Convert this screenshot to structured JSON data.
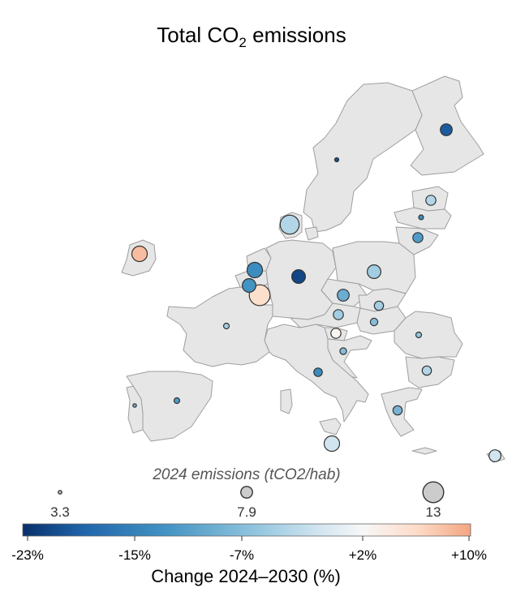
{
  "title": {
    "main": "Total CO",
    "sub": "2",
    "rest": " emissions"
  },
  "size_legend": {
    "title": "2024 emissions (tCO2/hab)",
    "items": [
      {
        "label": "3.3",
        "value": 3.3
      },
      {
        "label": "7.9",
        "value": 7.9
      },
      {
        "label": "13",
        "value": 13
      }
    ]
  },
  "colorbar": {
    "title": "Change 2024–2030 (%)",
    "min": -23,
    "max": 10,
    "ticks": [
      {
        "label": "-23%",
        "value": -23
      },
      {
        "label": "-15%",
        "value": -15
      },
      {
        "label": "-7%",
        "value": -7
      },
      {
        "label": "+2%",
        "value": 2
      },
      {
        "label": "+10%",
        "value": 10
      }
    ],
    "colors": [
      "#08306b",
      "#2166ac",
      "#4393c3",
      "#92c5de",
      "#d1e5f0",
      "#f7f7f7",
      "#fddbc7",
      "#f4a582"
    ]
  },
  "chart_data": {
    "type": "map",
    "emissions_per_capita_2024": "circle size",
    "change_2024_2030": "circle color",
    "points": [
      {
        "id": "FI",
        "emissions": 8.0,
        "change": -19
      },
      {
        "id": "SE",
        "emissions": 3.6,
        "change": -20
      },
      {
        "id": "EE",
        "emissions": 7.0,
        "change": -4
      },
      {
        "id": "LV",
        "emissions": 4.0,
        "change": -13
      },
      {
        "id": "LT",
        "emissions": 7.0,
        "change": -11
      },
      {
        "id": "DK",
        "emissions": 12.0,
        "change": -4
      },
      {
        "id": "IE",
        "emissions": 10.0,
        "change": 8
      },
      {
        "id": "NL",
        "emissions": 10.0,
        "change": -13
      },
      {
        "id": "BE",
        "emissions": 9.0,
        "change": -12
      },
      {
        "id": "LU",
        "emissions": 13.0,
        "change": 5
      },
      {
        "id": "DE",
        "emissions": 9.0,
        "change": -21
      },
      {
        "id": "PL",
        "emissions": 9.0,
        "change": -5
      },
      {
        "id": "CZ",
        "emissions": 8.0,
        "change": -9
      },
      {
        "id": "SK",
        "emissions": 6.5,
        "change": -5
      },
      {
        "id": "AT",
        "emissions": 7.0,
        "change": -5
      },
      {
        "id": "HU",
        "emissions": 5.5,
        "change": -7
      },
      {
        "id": "SI",
        "emissions": 7.0,
        "change": 2
      },
      {
        "id": "HR",
        "emissions": 5.0,
        "change": -7
      },
      {
        "id": "RO",
        "emissions": 4.5,
        "change": -6
      },
      {
        "id": "BG",
        "emissions": 6.5,
        "change": -4
      },
      {
        "id": "GR",
        "emissions": 6.5,
        "change": -8
      },
      {
        "id": "IT",
        "emissions": 6.0,
        "change": -13
      },
      {
        "id": "FR",
        "emissions": 4.5,
        "change": -5
      },
      {
        "id": "ES",
        "emissions": 4.5,
        "change": -11
      },
      {
        "id": "PT",
        "emissions": 3.3,
        "change": -9
      },
      {
        "id": "MT",
        "emissions": 10.0,
        "change": -2
      },
      {
        "id": "CY",
        "emissions": 8.0,
        "change": -2
      }
    ]
  }
}
